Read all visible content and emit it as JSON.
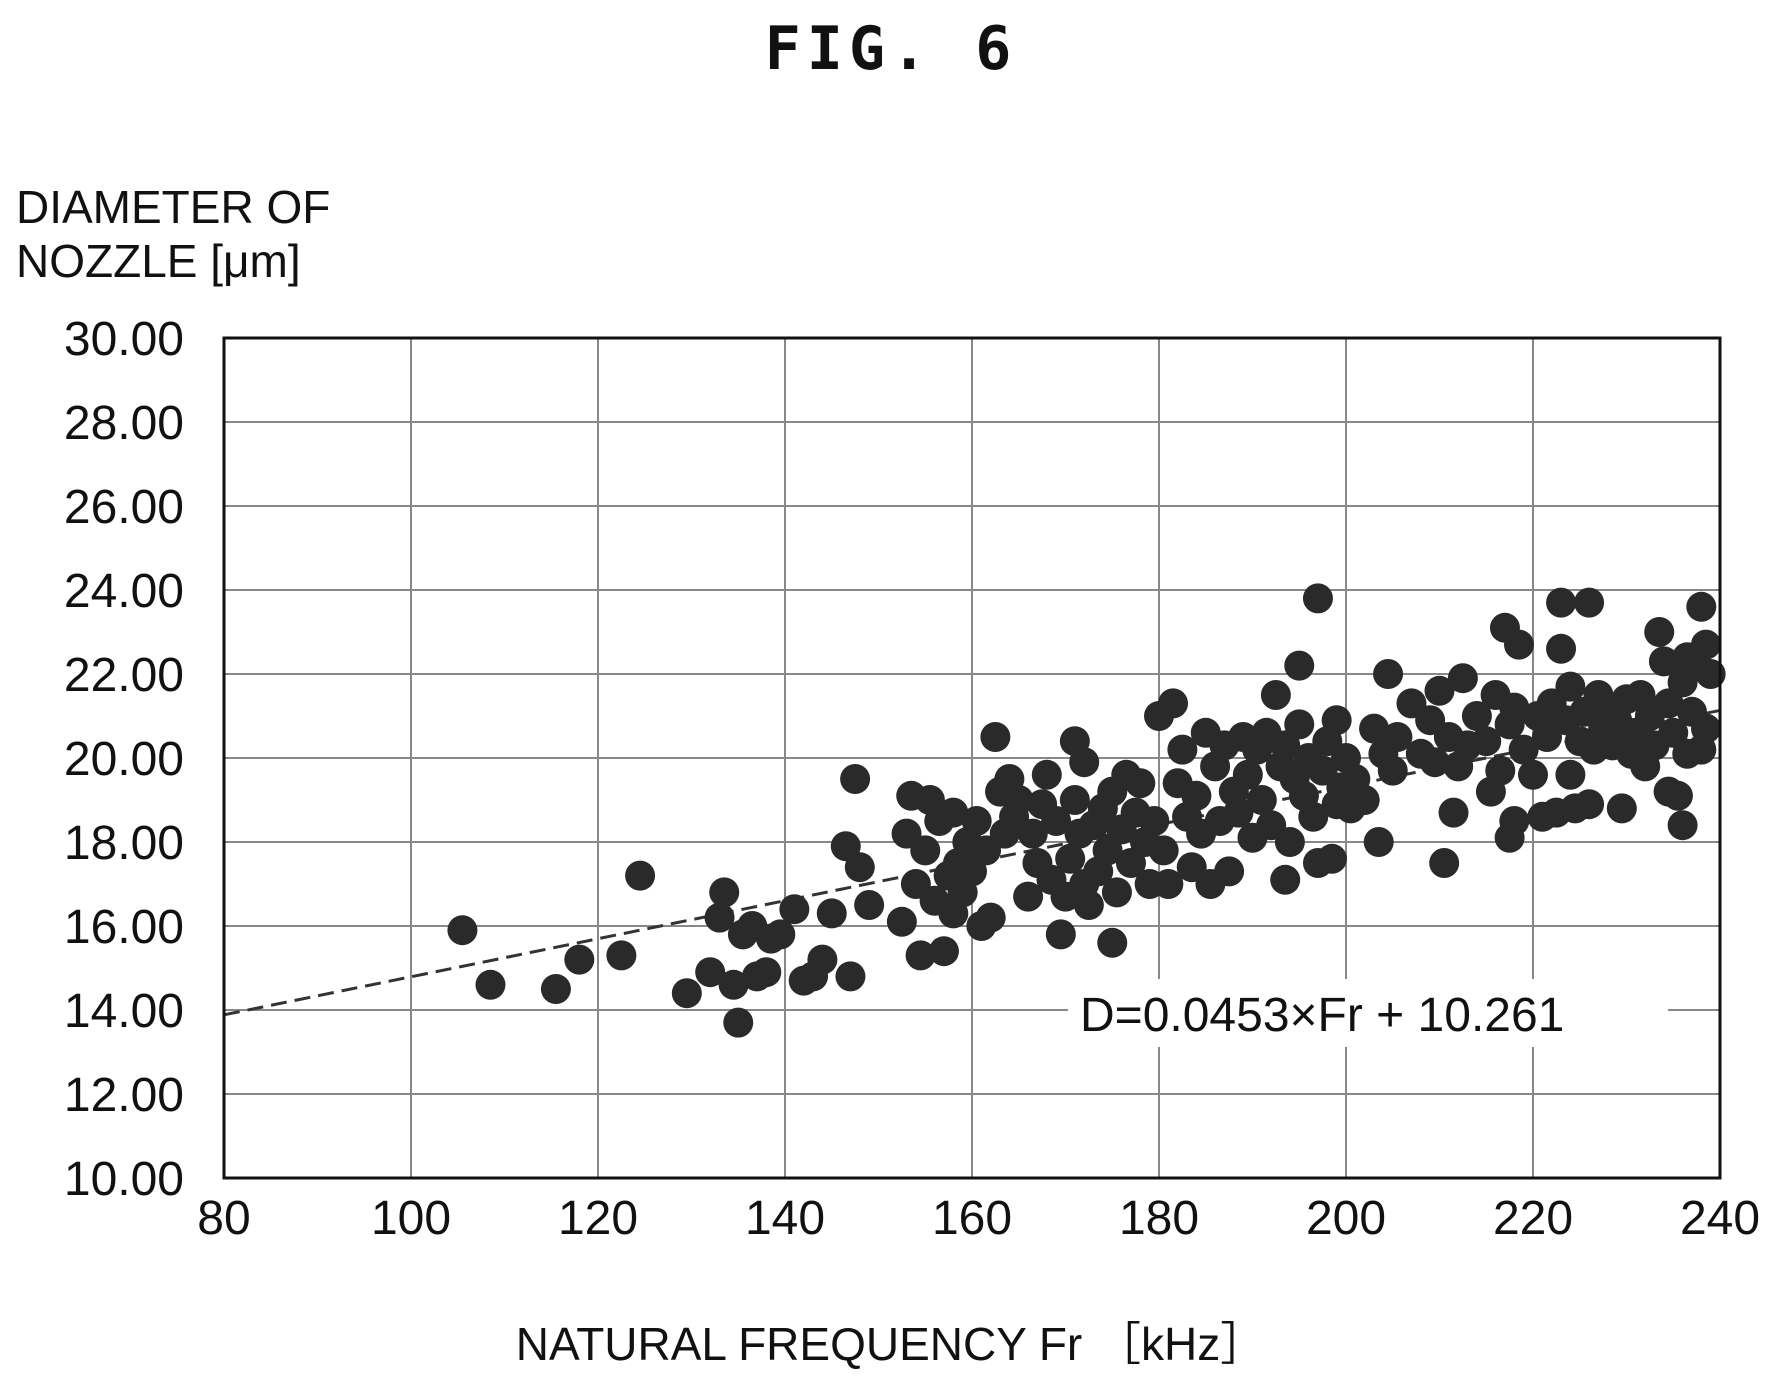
{
  "figure_label": "FIG. 6",
  "chart_data": {
    "type": "scatter",
    "title": "",
    "ylabel_lines": [
      "DIAMETER OF",
      "NOZZLE [μm]"
    ],
    "xlabel": "NATURAL FREQUENCY Fr ［kHz］",
    "xlim": [
      80,
      240
    ],
    "ylim": [
      10,
      30
    ],
    "x_ticks": [
      80,
      100,
      120,
      140,
      160,
      180,
      200,
      220,
      240
    ],
    "x_tick_labels": [
      "80",
      "100",
      "120",
      "140",
      "160",
      "180",
      "200",
      "220",
      "240"
    ],
    "y_ticks": [
      10,
      12,
      14,
      16,
      18,
      20,
      22,
      24,
      26,
      28,
      30
    ],
    "y_tick_labels": [
      "10.00",
      "12.00",
      "14.00",
      "16.00",
      "18.00",
      "20.00",
      "22.00",
      "24.00",
      "26.00",
      "28.00",
      "30.00"
    ],
    "grid": true,
    "legend": false,
    "trendline": {
      "slope": 0.0453,
      "intercept": 10.261,
      "style": "dashed",
      "x_range": [
        80,
        240
      ]
    },
    "equation_label": "D=0.0453×Fr + 10.261",
    "colors": {
      "points": "#2a2a2a",
      "grid": "#888888",
      "axes": "#111111",
      "trendline": "#333333"
    },
    "points": [
      [
        105.5,
        15.9
      ],
      [
        108.5,
        14.6
      ],
      [
        115.5,
        14.5
      ],
      [
        118,
        15.2
      ],
      [
        122.5,
        15.3
      ],
      [
        124.5,
        17.2
      ],
      [
        129.5,
        14.4
      ],
      [
        132,
        14.9
      ],
      [
        133.5,
        16.8
      ],
      [
        133,
        16.2
      ],
      [
        134.5,
        14.6
      ],
      [
        135,
        13.7
      ],
      [
        135.5,
        15.8
      ],
      [
        136.5,
        16.0
      ],
      [
        137,
        14.8
      ],
      [
        138,
        14.9
      ],
      [
        138.5,
        15.7
      ],
      [
        139.5,
        15.8
      ],
      [
        141,
        16.4
      ],
      [
        142,
        14.7
      ],
      [
        143,
        14.8
      ],
      [
        144,
        15.2
      ],
      [
        145,
        16.3
      ],
      [
        146.5,
        17.9
      ],
      [
        147,
        14.8
      ],
      [
        147.5,
        19.5
      ],
      [
        148,
        17.4
      ],
      [
        149,
        16.5
      ],
      [
        152.5,
        16.1
      ],
      [
        153,
        18.2
      ],
      [
        153.5,
        19.1
      ],
      [
        154,
        17.0
      ],
      [
        154.5,
        15.3
      ],
      [
        155,
        17.8
      ],
      [
        155.5,
        19.0
      ],
      [
        156,
        16.6
      ],
      [
        156.5,
        18.5
      ],
      [
        157,
        15.4
      ],
      [
        157.5,
        17.2
      ],
      [
        158,
        16.3
      ],
      [
        158,
        18.7
      ],
      [
        158.5,
        17.5
      ],
      [
        159,
        16.8
      ],
      [
        159.5,
        18.0
      ],
      [
        160,
        17.3
      ],
      [
        160.5,
        18.5
      ],
      [
        161,
        16.0
      ],
      [
        161.5,
        17.8
      ],
      [
        162,
        16.2
      ],
      [
        162.5,
        20.5
      ],
      [
        163,
        19.2
      ],
      [
        163.5,
        18.2
      ],
      [
        164,
        19.5
      ],
      [
        164.5,
        18.6
      ],
      [
        165,
        19.0
      ],
      [
        166,
        16.7
      ],
      [
        166.5,
        18.2
      ],
      [
        167,
        17.5
      ],
      [
        167.5,
        18.9
      ],
      [
        168,
        19.6
      ],
      [
        168.5,
        17.1
      ],
      [
        169,
        18.5
      ],
      [
        169.5,
        15.8
      ],
      [
        170,
        16.7
      ],
      [
        170.5,
        17.6
      ],
      [
        171,
        19.0
      ],
      [
        171,
        20.4
      ],
      [
        171.5,
        18.2
      ],
      [
        172,
        17.0
      ],
      [
        172,
        19.9
      ],
      [
        172.5,
        16.5
      ],
      [
        173,
        18.4
      ],
      [
        173.5,
        17.3
      ],
      [
        174,
        18.8
      ],
      [
        174.5,
        17.8
      ],
      [
        175,
        15.6
      ],
      [
        175,
        19.2
      ],
      [
        175.5,
        16.8
      ],
      [
        176,
        18.3
      ],
      [
        176.5,
        19.6
      ],
      [
        177,
        17.5
      ],
      [
        177.5,
        18.7
      ],
      [
        178,
        19.4
      ],
      [
        178.5,
        18.0
      ],
      [
        179,
        17.0
      ],
      [
        179.5,
        18.5
      ],
      [
        180,
        21.0
      ],
      [
        180.5,
        17.8
      ],
      [
        181,
        17.0
      ],
      [
        181.5,
        21.3
      ],
      [
        182,
        19.4
      ],
      [
        182.5,
        20.2
      ],
      [
        183,
        18.6
      ],
      [
        183.5,
        17.4
      ],
      [
        184,
        19.1
      ],
      [
        184.5,
        18.2
      ],
      [
        185,
        20.6
      ],
      [
        185.5,
        17.0
      ],
      [
        186,
        19.8
      ],
      [
        186.5,
        18.5
      ],
      [
        187,
        20.3
      ],
      [
        187.5,
        17.3
      ],
      [
        188,
        19.2
      ],
      [
        188.5,
        18.7
      ],
      [
        189,
        20.5
      ],
      [
        189.5,
        19.6
      ],
      [
        190,
        18.1
      ],
      [
        190.5,
        20.2
      ],
      [
        191,
        19.0
      ],
      [
        191.5,
        20.6
      ],
      [
        192,
        18.4
      ],
      [
        192.5,
        21.5
      ],
      [
        193,
        19.8
      ],
      [
        193.5,
        17.1
      ],
      [
        193.5,
        20.3
      ],
      [
        194,
        18.0
      ],
      [
        194.5,
        19.5
      ],
      [
        195,
        20.8
      ],
      [
        195,
        22.2
      ],
      [
        195.5,
        19.1
      ],
      [
        196,
        20.0
      ],
      [
        196.5,
        18.6
      ],
      [
        197,
        23.8
      ],
      [
        197,
        17.5
      ],
      [
        197.5,
        19.7
      ],
      [
        198,
        20.4
      ],
      [
        198.5,
        17.6
      ],
      [
        199,
        18.9
      ],
      [
        199,
        20.9
      ],
      [
        199.5,
        19.3
      ],
      [
        200,
        20.0
      ],
      [
        200.5,
        18.8
      ],
      [
        201,
        19.5
      ],
      [
        202,
        19.0
      ],
      [
        203,
        20.7
      ],
      [
        203.5,
        18.0
      ],
      [
        204,
        20.1
      ],
      [
        204.5,
        22.0
      ],
      [
        205,
        19.7
      ],
      [
        205.5,
        20.5
      ],
      [
        207,
        21.3
      ],
      [
        208,
        20.1
      ],
      [
        209,
        20.9
      ],
      [
        209.5,
        19.9
      ],
      [
        210,
        21.6
      ],
      [
        210.5,
        17.5
      ],
      [
        211,
        20.5
      ],
      [
        211.5,
        18.7
      ],
      [
        212,
        19.8
      ],
      [
        212.5,
        21.9
      ],
      [
        213,
        20.3
      ],
      [
        214,
        21.0
      ],
      [
        215,
        20.4
      ],
      [
        215.5,
        19.2
      ],
      [
        216,
        21.5
      ],
      [
        216.5,
        19.7
      ],
      [
        217,
        23.1
      ],
      [
        217.5,
        18.1
      ],
      [
        217.5,
        20.8
      ],
      [
        218,
        18.5
      ],
      [
        218,
        21.2
      ],
      [
        218.5,
        22.7
      ],
      [
        219,
        20.2
      ],
      [
        220,
        19.6
      ],
      [
        220.5,
        21.0
      ],
      [
        221,
        18.6
      ],
      [
        221.5,
        20.5
      ],
      [
        222,
        21.3
      ],
      [
        222.5,
        18.7
      ],
      [
        223,
        23.7
      ],
      [
        223,
        22.6
      ],
      [
        223.5,
        20.9
      ],
      [
        224,
        19.6
      ],
      [
        224,
        21.7
      ],
      [
        224.5,
        18.8
      ],
      [
        225,
        20.4
      ],
      [
        225.5,
        21.1
      ],
      [
        226,
        23.7
      ],
      [
        226,
        18.9
      ],
      [
        226.5,
        20.2
      ],
      [
        227,
        21.5
      ],
      [
        227.5,
        20.7
      ],
      [
        228,
        21.2
      ],
      [
        228.5,
        20.3
      ],
      [
        229,
        20.9
      ],
      [
        229.5,
        18.8
      ],
      [
        230,
        21.4
      ],
      [
        230.5,
        20.1
      ],
      [
        231,
        20.6
      ],
      [
        231.5,
        21.5
      ],
      [
        232,
        19.8
      ],
      [
        232.5,
        21.0
      ],
      [
        233,
        20.3
      ],
      [
        233.5,
        23.0
      ],
      [
        234,
        22.3
      ],
      [
        234.5,
        21.3
      ],
      [
        234.5,
        19.2
      ],
      [
        235,
        20.6
      ],
      [
        235.5,
        19.1
      ],
      [
        236,
        21.8
      ],
      [
        236,
        18.4
      ],
      [
        236.5,
        20.1
      ],
      [
        236.5,
        22.4
      ],
      [
        237,
        21.1
      ],
      [
        237.5,
        22.2
      ],
      [
        238,
        20.2
      ],
      [
        238,
        23.6
      ],
      [
        238.5,
        22.7
      ],
      [
        238.5,
        20.7
      ],
      [
        239,
        22.0
      ]
    ]
  }
}
